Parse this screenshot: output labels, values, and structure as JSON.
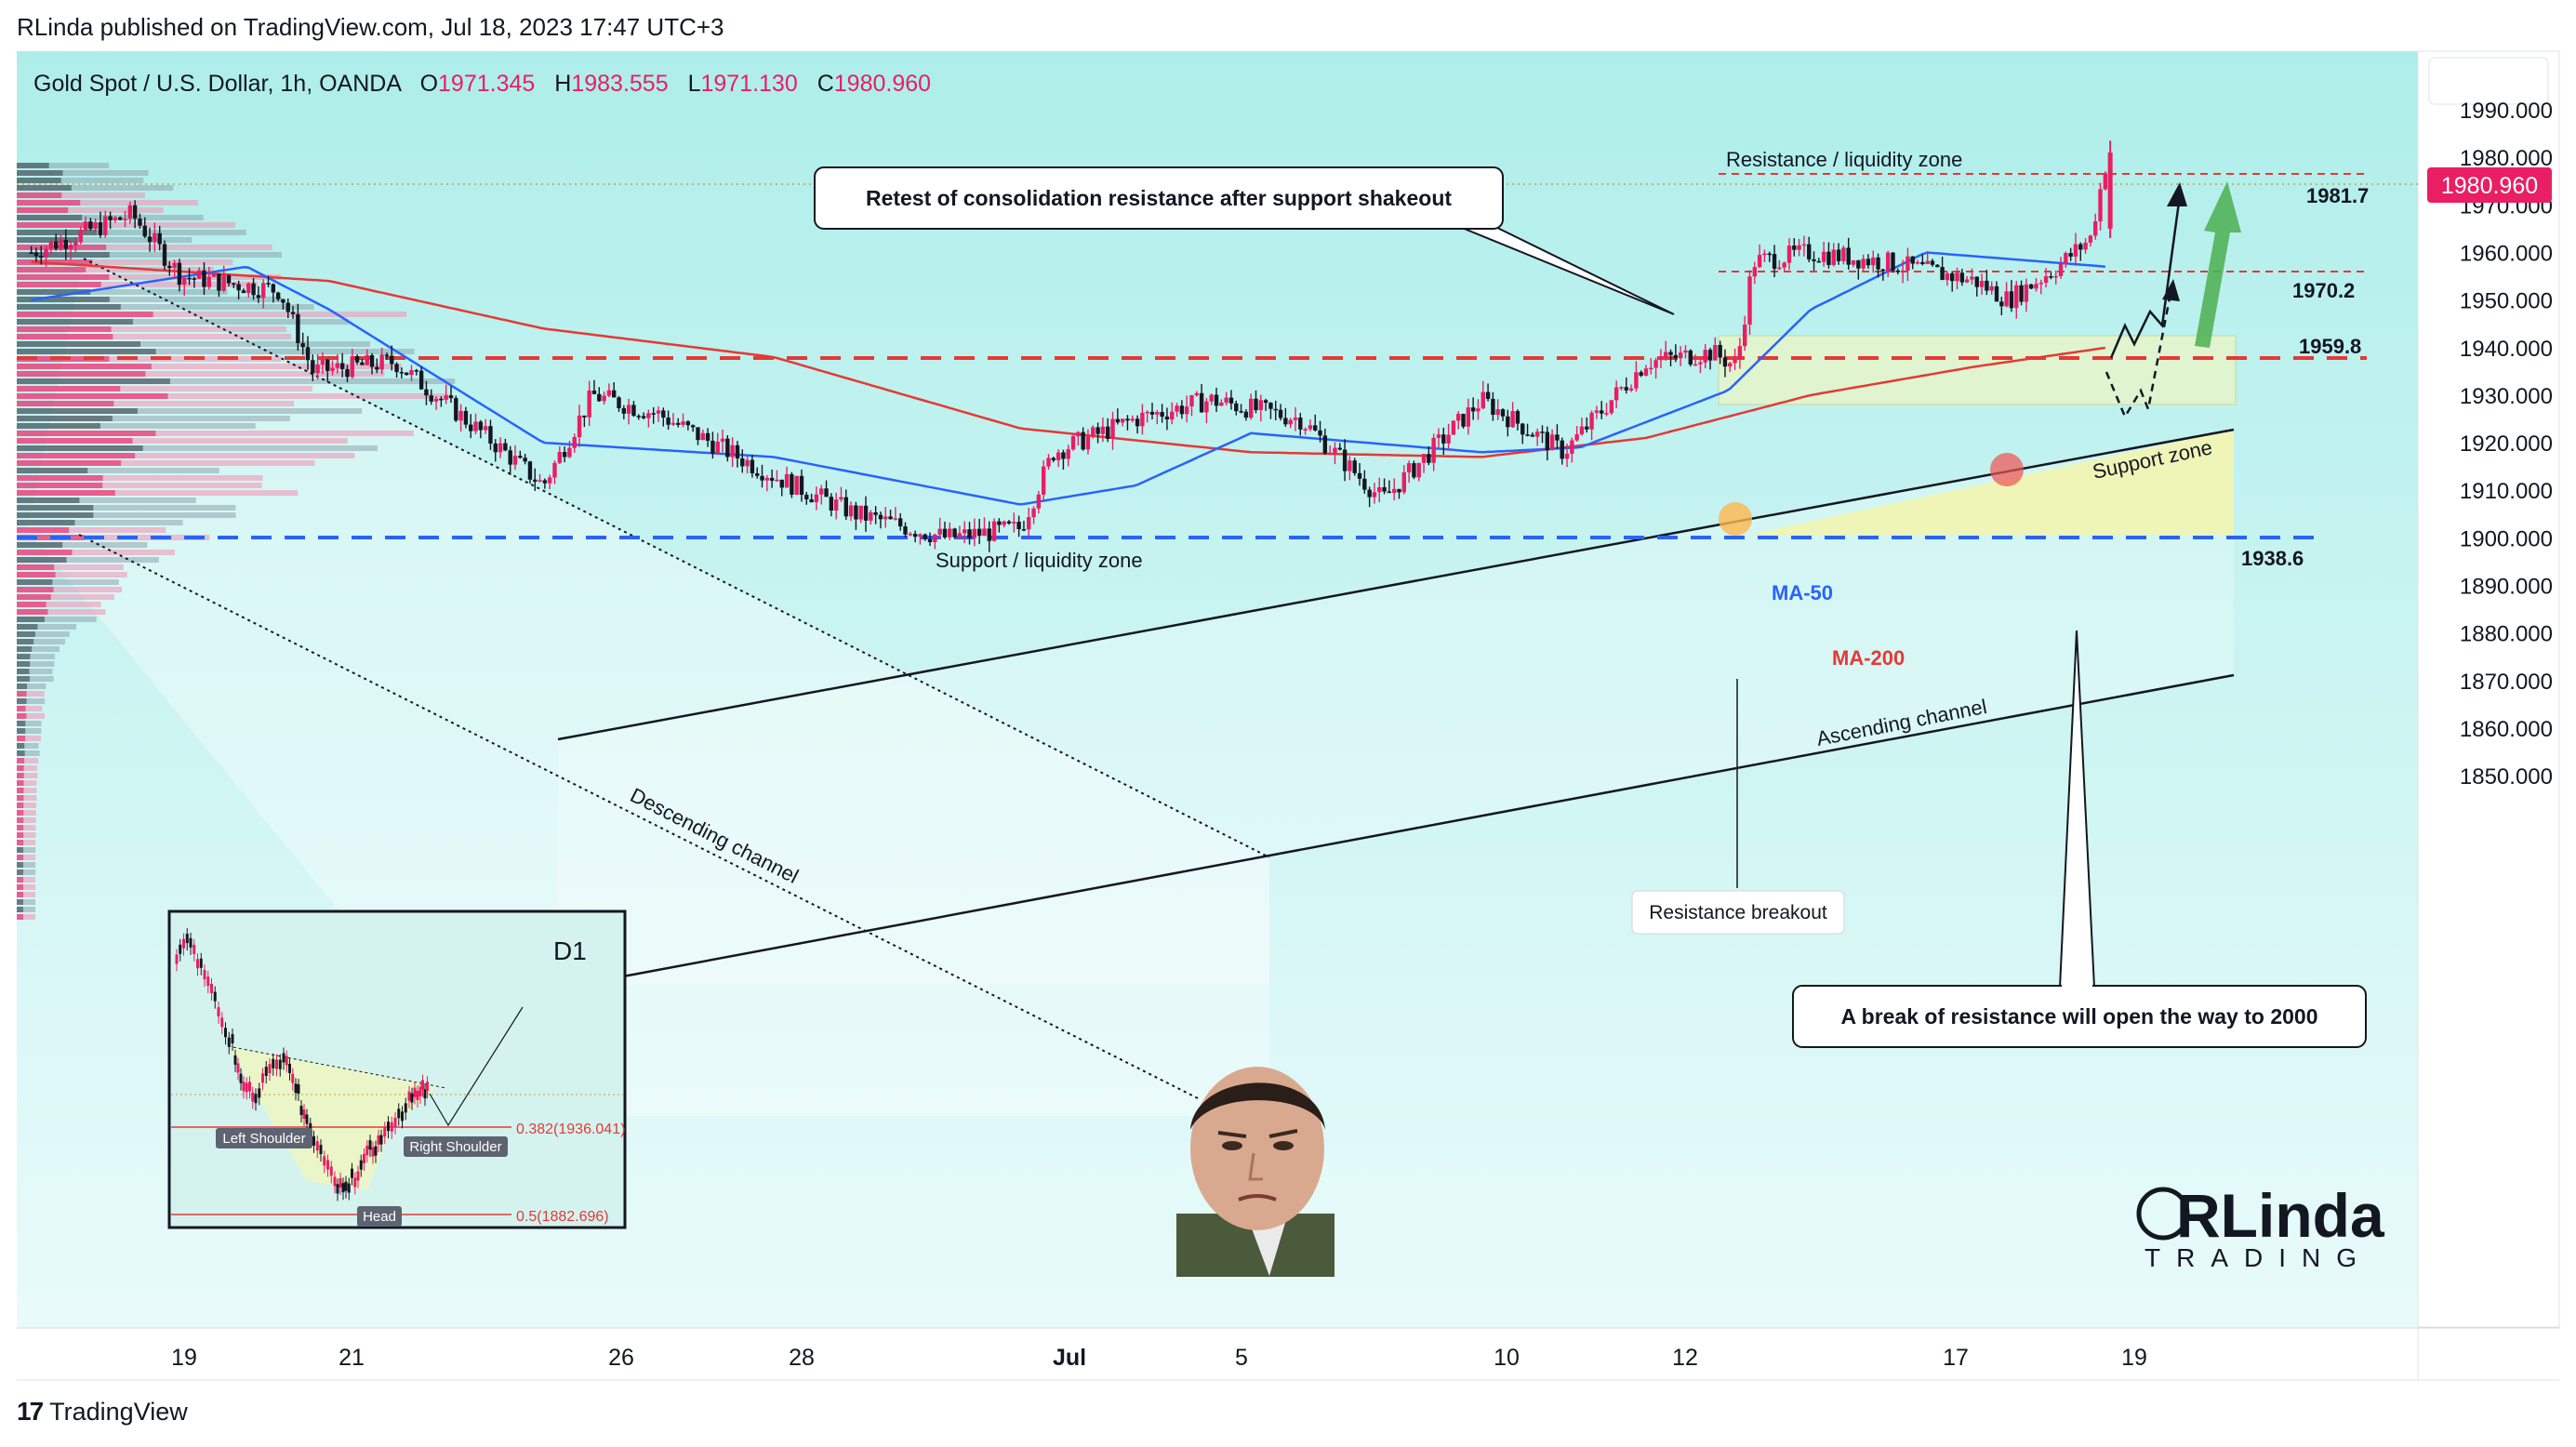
{
  "header": {
    "publisher_line": "RLinda published on TradingView.com, Jul 18, 2023 17:47 UTC+3"
  },
  "footer": {
    "brand": "TradingView"
  },
  "symbol": {
    "name": "Gold Spot / U.S. Dollar, 1h, OANDA",
    "o_label": "O",
    "o": "1971.345",
    "h_label": "H",
    "h": "1983.555",
    "l_label": "L",
    "l": "1971.130",
    "c_label": "C",
    "c": "1980.960"
  },
  "colors": {
    "background": "#aeeeea",
    "up": "#e91e63",
    "down": "#131722",
    "ma50": "#2962ff",
    "ma200": "#e53935",
    "resistance": "#e53935",
    "support": "#2962ff",
    "price_badge": "#e91e63"
  },
  "annotations": {
    "retest_callout": "Retest of consolidation resistance after support shakeout",
    "break_callout": "A break of resistance will open the way to 2000",
    "resistance_zone": "Resistance / liquidity zone",
    "support_liquidity": "Support / liquidity zone",
    "support_zone": "Support zone",
    "descending_channel": "Descending channel",
    "ascending_channel": "Ascending channel",
    "resistance_breakout": "Resistance breakout",
    "ma50": "MA-50",
    "ma200": "MA-200"
  },
  "levels": {
    "l1981": "1981.7",
    "l1970": "1970.2",
    "l1959": "1959.8",
    "l1938": "1938.6",
    "current": "1980.960"
  },
  "inset": {
    "timeframe": "D1",
    "fib382": "0.382(1936.041)",
    "fib5": "0.5(1882.696)",
    "left_shoulder": "Left Shoulder",
    "head": "Head",
    "right_shoulder": "Right Shoulder"
  },
  "logo": {
    "top": "RLinda",
    "bottom": "TRADING"
  },
  "chart_data": {
    "type": "candlestick",
    "instrument": "Gold Spot / U.S. Dollar, 1h, OANDA",
    "y_ticks": [
      "1990.000",
      "1980.000",
      "1970.000",
      "1960.000",
      "1950.000",
      "1940.000",
      "1930.000",
      "1920.000",
      "1910.000",
      "1900.000",
      "1890.000",
      "1880.000",
      "1870.000",
      "1860.000",
      "1850.000"
    ],
    "x_ticks": [
      "19",
      "21",
      "26",
      "28",
      "Jul",
      "5",
      "10",
      "12",
      "17",
      "19"
    ],
    "ylim": [
      1844,
      1993
    ],
    "anchors": [
      {
        "t": 19,
        "v": 1960
      },
      {
        "t": 80,
        "v": 1968
      },
      {
        "t": 110,
        "v": 1955
      },
      {
        "t": 170,
        "v": 1952
      },
      {
        "t": 190,
        "v": 1935
      },
      {
        "t": 240,
        "v": 1937
      },
      {
        "t": 300,
        "v": 1920
      },
      {
        "t": 330,
        "v": 1911
      },
      {
        "t": 360,
        "v": 1930
      },
      {
        "t": 400,
        "v": 1926
      },
      {
        "t": 470,
        "v": 1913
      },
      {
        "t": 520,
        "v": 1905
      },
      {
        "t": 575,
        "v": 1900
      },
      {
        "t": 620,
        "v": 1902
      },
      {
        "t": 640,
        "v": 1918
      },
      {
        "t": 690,
        "v": 1925
      },
      {
        "t": 735,
        "v": 1929
      },
      {
        "t": 790,
        "v": 1925
      },
      {
        "t": 840,
        "v": 1908
      },
      {
        "t": 900,
        "v": 1929
      },
      {
        "t": 950,
        "v": 1918
      },
      {
        "t": 1000,
        "v": 1937
      },
      {
        "t": 1040,
        "v": 1939
      },
      {
        "t": 1055,
        "v": 1936
      },
      {
        "t": 1065,
        "v": 1958
      },
      {
        "t": 1100,
        "v": 1960
      },
      {
        "t": 1145,
        "v": 1958
      },
      {
        "t": 1200,
        "v": 1954
      },
      {
        "t": 1220,
        "v": 1950
      },
      {
        "t": 1250,
        "v": 1957
      },
      {
        "t": 1270,
        "v": 1963
      },
      {
        "t": 1280,
        "v": 1980
      }
    ],
    "ma50": [
      {
        "t": 19,
        "v": 1950
      },
      {
        "t": 150,
        "v": 1957
      },
      {
        "t": 200,
        "v": 1948
      },
      {
        "t": 330,
        "v": 1920
      },
      {
        "t": 470,
        "v": 1917
      },
      {
        "t": 620,
        "v": 1907
      },
      {
        "t": 690,
        "v": 1911
      },
      {
        "t": 760,
        "v": 1922
      },
      {
        "t": 900,
        "v": 1918
      },
      {
        "t": 960,
        "v": 1919
      },
      {
        "t": 1050,
        "v": 1931
      },
      {
        "t": 1100,
        "v": 1948
      },
      {
        "t": 1170,
        "v": 1960
      },
      {
        "t": 1280,
        "v": 1957
      }
    ],
    "ma200": [
      {
        "t": 19,
        "v": 1958
      },
      {
        "t": 200,
        "v": 1954
      },
      {
        "t": 330,
        "v": 1944
      },
      {
        "t": 470,
        "v": 1938
      },
      {
        "t": 620,
        "v": 1923
      },
      {
        "t": 760,
        "v": 1918
      },
      {
        "t": 900,
        "v": 1917
      },
      {
        "t": 1000,
        "v": 1921
      },
      {
        "t": 1100,
        "v": 1930
      },
      {
        "t": 1200,
        "v": 1936
      },
      {
        "t": 1280,
        "v": 1940
      }
    ],
    "levels": [
      1981.7,
      1970.2,
      1959.8,
      1938.6
    ],
    "last_price": 1980.96
  }
}
